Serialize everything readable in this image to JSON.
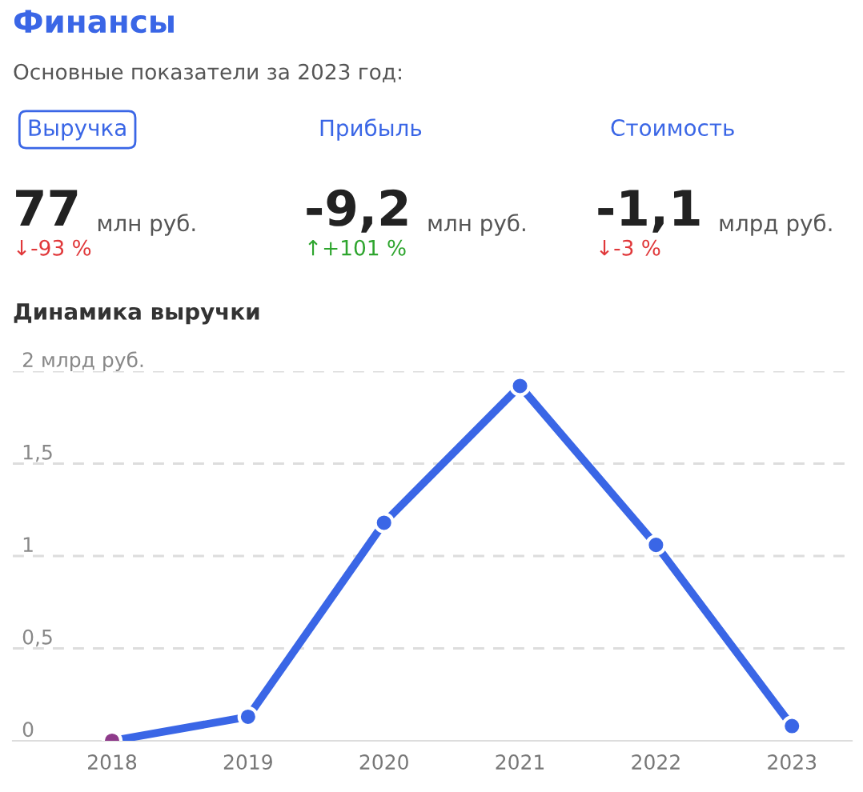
{
  "chart_data": [
    {
      "type": "other",
      "title": "Финансы",
      "subtitle": "Основные показатели за 2023 год:",
      "annotations": [
        "Выручка",
        "77",
        "млн руб.",
        "↓-93 %",
        "Прибыль",
        "-9,2",
        "млн руб.",
        "↑+101 %",
        "Стоимость",
        "-1,1",
        "млрд руб.",
        "↓-3 %"
      ]
    },
    {
      "type": "line",
      "title": "Динамика выручки",
      "categories": [
        "2018",
        "2019",
        "2020",
        "2021",
        "2022",
        "2023"
      ],
      "series": [
        {
          "color": "#3a66e6",
          "values": [
            0,
            0.13,
            1.18,
            1.92,
            1.06,
            0.08
          ]
        }
      ],
      "colors": [
        "#8e3b8a",
        "#3a66e6",
        "#3a66e6",
        "#3a66e6",
        "#3a66e6",
        "#3a66e6"
      ],
      "ylim": [
        0,
        2
      ],
      "yticks": [
        0,
        {
          "value": 0.5,
          "label": "0,5"
        },
        1,
        {
          "value": 1.5,
          "label": "1,5"
        },
        {
          "value": 2,
          "label": "2 млрд руб."
        }
      ],
      "grid": "y",
      "marker": "circle",
      "line_style": "solid"
    }
  ]
}
